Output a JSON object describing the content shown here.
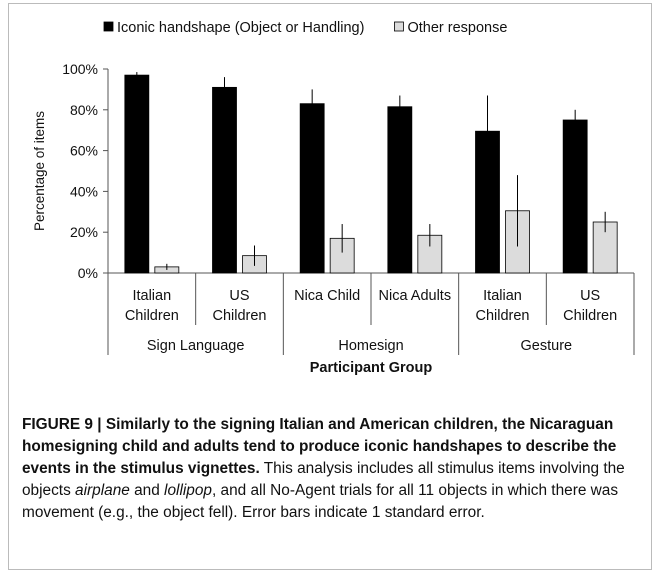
{
  "chart_data": {
    "type": "bar",
    "xlabel": "Participant Group",
    "ylabel": "Percentage of items",
    "ylim": [
      0,
      100
    ],
    "yticks": [
      "0%",
      "20%",
      "40%",
      "60%",
      "80%",
      "100%"
    ],
    "legend_position": "top",
    "grid": false,
    "categories": [
      {
        "line1": "Italian",
        "line2": "Children"
      },
      {
        "line1": "US",
        "line2": "Children"
      },
      {
        "line1": "Nica Child",
        "line2": ""
      },
      {
        "line1": "Nica Adults",
        "line2": ""
      },
      {
        "line1": "Italian",
        "line2": "Children"
      },
      {
        "line1": "US",
        "line2": "Children"
      }
    ],
    "groups": [
      {
        "label": "Sign Language",
        "span": [
          0,
          1
        ]
      },
      {
        "label": "Homesign",
        "span": [
          2,
          3
        ]
      },
      {
        "label": "Gesture",
        "span": [
          4,
          5
        ]
      }
    ],
    "series": [
      {
        "name": "Iconic handshape (Object or Handling)",
        "color": "#000000",
        "values": [
          97,
          91,
          83,
          81.5,
          69.5,
          75
        ],
        "errors": [
          1.5,
          5,
          7,
          5.5,
          17.5,
          5
        ]
      },
      {
        "name": "Other response",
        "color": "#dcdcdc",
        "values": [
          3,
          8.5,
          17,
          18.5,
          30.5,
          25
        ],
        "errors": [
          1.5,
          5,
          7,
          5.5,
          17.5,
          5
        ]
      }
    ]
  },
  "caption": {
    "bold": "FIGURE 9 | Similarly to the signing Italian and American children, the Nicaraguan homesigning child and adults tend to produce iconic handshapes to describe the events in the stimulus vignettes.",
    "part1": " This analysis includes all stimulus items involving the objects ",
    "obj1": "airplane",
    "part2": " and ",
    "obj2": "lollipop",
    "part3": ", and all No-Agent trials for all 11 objects in which there was movement (e.g., the object fell). Error bars indicate 1 standard error."
  }
}
